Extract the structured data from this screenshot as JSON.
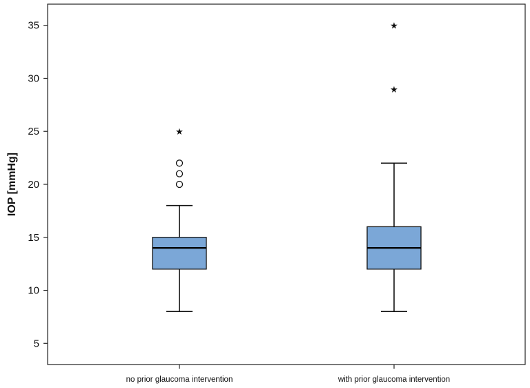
{
  "chart_data": {
    "type": "boxplot",
    "ylabel": "IOP [mmHg]",
    "xlabel": "",
    "ylim": [
      3,
      37
    ],
    "yticks": [
      5,
      10,
      15,
      20,
      25,
      30,
      35
    ],
    "grid": false,
    "categories": [
      "no prior glaucoma intervention",
      "with prior glaucoma intervention"
    ],
    "box_color": "#7ba7d7",
    "boxes": [
      {
        "category": "no prior glaucoma intervention",
        "whisker_low": 8,
        "q1": 12,
        "median": 14,
        "q3": 15,
        "whisker_high": 18,
        "outliers": [
          20,
          21,
          22
        ],
        "extremes": [
          25
        ]
      },
      {
        "category": "with prior glaucoma intervention",
        "whisker_low": 8,
        "q1": 12,
        "median": 14,
        "q3": 16,
        "whisker_high": 22,
        "outliers": [],
        "extremes": [
          29,
          35
        ]
      }
    ]
  }
}
